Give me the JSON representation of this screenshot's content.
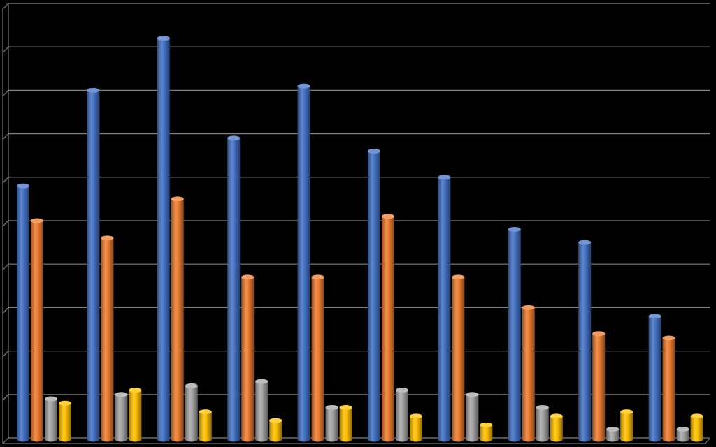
{
  "chart_data": {
    "type": "bar",
    "style": "3d-cylinder",
    "title": "",
    "xlabel": "",
    "ylabel": "",
    "categories": [
      "",
      "",
      "",
      "",
      "",
      "",
      "",
      "",
      "",
      ""
    ],
    "ylim": [
      0,
      10
    ],
    "grid": true,
    "legend": "none",
    "series": [
      {
        "color": "#4472C4",
        "values": [
          5.8,
          8.0,
          9.2,
          6.9,
          8.1,
          6.6,
          6.0,
          4.8,
          4.5,
          2.8
        ]
      },
      {
        "color": "#ED7D31",
        "values": [
          5.0,
          4.6,
          5.5,
          3.7,
          3.7,
          5.1,
          3.7,
          3.0,
          2.4,
          2.3
        ]
      },
      {
        "color": "#A5A5A5",
        "values": [
          0.9,
          1.0,
          1.2,
          1.3,
          0.7,
          1.1,
          1.0,
          0.7,
          0.2,
          0.2
        ]
      },
      {
        "color": "#FFC000",
        "values": [
          0.8,
          1.1,
          0.6,
          0.4,
          0.7,
          0.5,
          0.3,
          0.5,
          0.6,
          0.5
        ]
      }
    ]
  },
  "colors": {
    "background": "#000000",
    "gridline": "#7f7f7f",
    "axis": "#8c8c8c"
  }
}
